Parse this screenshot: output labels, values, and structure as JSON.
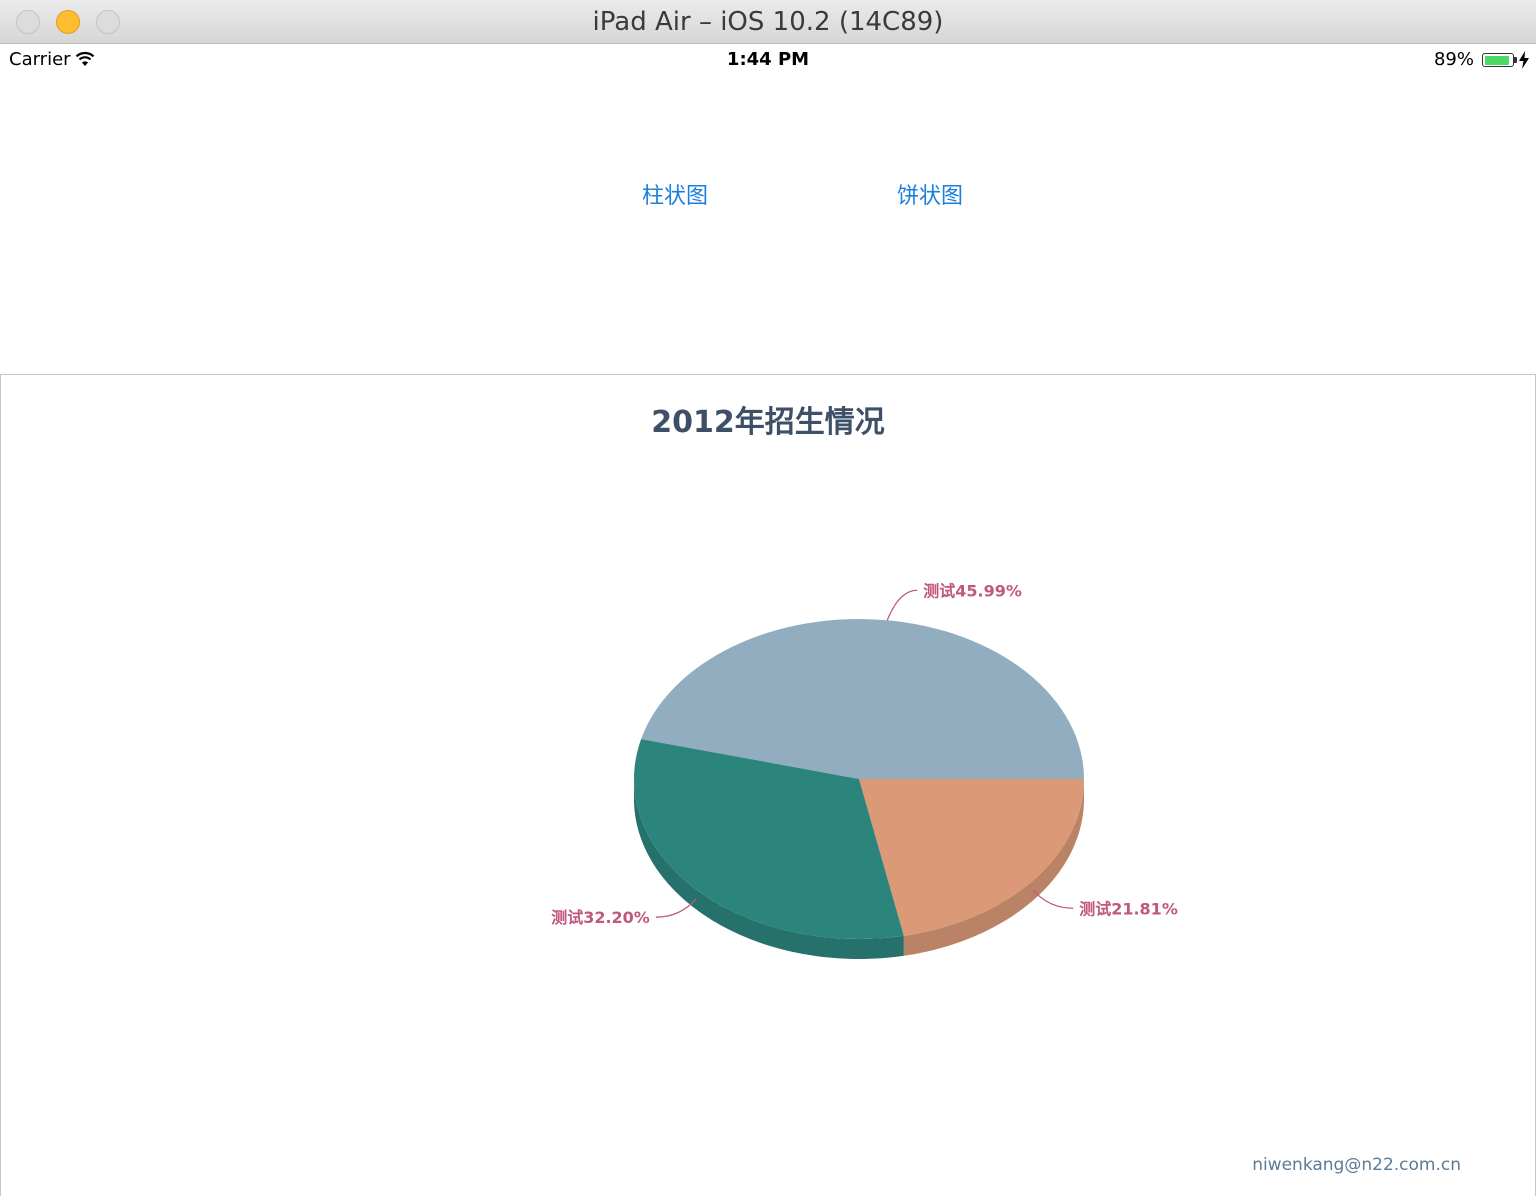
{
  "window": {
    "title": "iPad Air – iOS 10.2 (14C89)"
  },
  "status_bar": {
    "carrier": "Carrier",
    "time": "1:44 PM",
    "battery_percent": "89%",
    "battery_level": 0.89,
    "battery_color": "#4cd964"
  },
  "tabs": [
    {
      "label": "柱状图"
    },
    {
      "label": "饼状图"
    }
  ],
  "credit": "niwenkang@n22.com.cn",
  "chart_data": {
    "type": "pie",
    "title": "2012年招生情况",
    "slices": [
      {
        "label": "测试45.99%",
        "value": 45.99,
        "color": "#92adc0",
        "side_color": "#7c94a5"
      },
      {
        "label": "测试21.81%",
        "value": 21.81,
        "color": "#db9978",
        "side_color": "#bb8366"
      },
      {
        "label": "测试32.20%",
        "value": 32.2,
        "color": "#2c857d",
        "side_color": "#26716b"
      }
    ],
    "label_color": "#c0577f"
  }
}
